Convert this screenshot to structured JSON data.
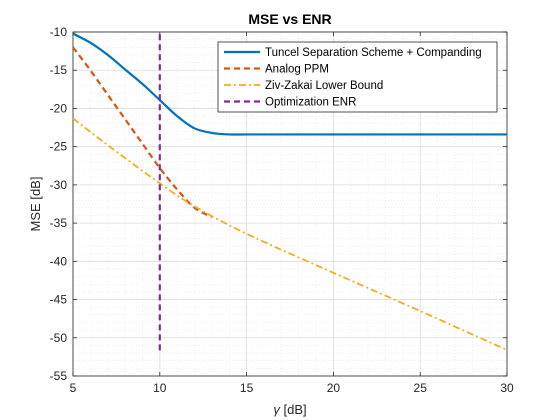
{
  "chart_data": {
    "type": "line",
    "title": "MSE vs ENR",
    "xlabel_symbol": "γ",
    "xlabel_unit": " [dB]",
    "ylabel": "MSE [dB]",
    "xlim": [
      5,
      30
    ],
    "ylim": [
      -55,
      -10
    ],
    "xticks": [
      5,
      10,
      15,
      20,
      25,
      30
    ],
    "yticks": [
      -10,
      -15,
      -20,
      -25,
      -30,
      -35,
      -40,
      -45,
      -50,
      -55
    ],
    "grid": true,
    "minor_grid": true,
    "legend_position": "top-right",
    "series": [
      {
        "name": "Tuncel Separation Scheme + Companding",
        "color": "#0072BD",
        "style": "solid",
        "x": [
          5,
          6,
          7,
          8,
          9,
          10,
          11,
          12,
          13,
          14,
          15,
          17,
          20,
          25,
          30
        ],
        "y": [
          -10.2,
          -11.4,
          -13.0,
          -14.9,
          -16.8,
          -18.9,
          -21.0,
          -22.6,
          -23.2,
          -23.4,
          -23.4,
          -23.4,
          -23.4,
          -23.4,
          -23.4
        ]
      },
      {
        "name": "Analog PPM",
        "color": "#D95319",
        "style": "dashed",
        "x": [
          5,
          6,
          7,
          8,
          9,
          10,
          11,
          12,
          13
        ],
        "y": [
          -12.0,
          -15.0,
          -18.2,
          -21.4,
          -24.6,
          -27.8,
          -30.6,
          -33.0,
          -34.2
        ]
      },
      {
        "name": "Ziv-Zakai Lower Bound",
        "color": "#EDB120",
        "style": "dashdot",
        "x": [
          5,
          7,
          10,
          12,
          15,
          20,
          25,
          30
        ],
        "y": [
          -21.3,
          -24.8,
          -29.8,
          -32.8,
          -36.4,
          -41.5,
          -46.5,
          -51.6
        ]
      },
      {
        "name": "Optimization ENR",
        "color": "#7E2F8E",
        "style": "dashed",
        "x": [
          10,
          10
        ],
        "y": [
          -10.3,
          -51.8
        ]
      }
    ]
  }
}
